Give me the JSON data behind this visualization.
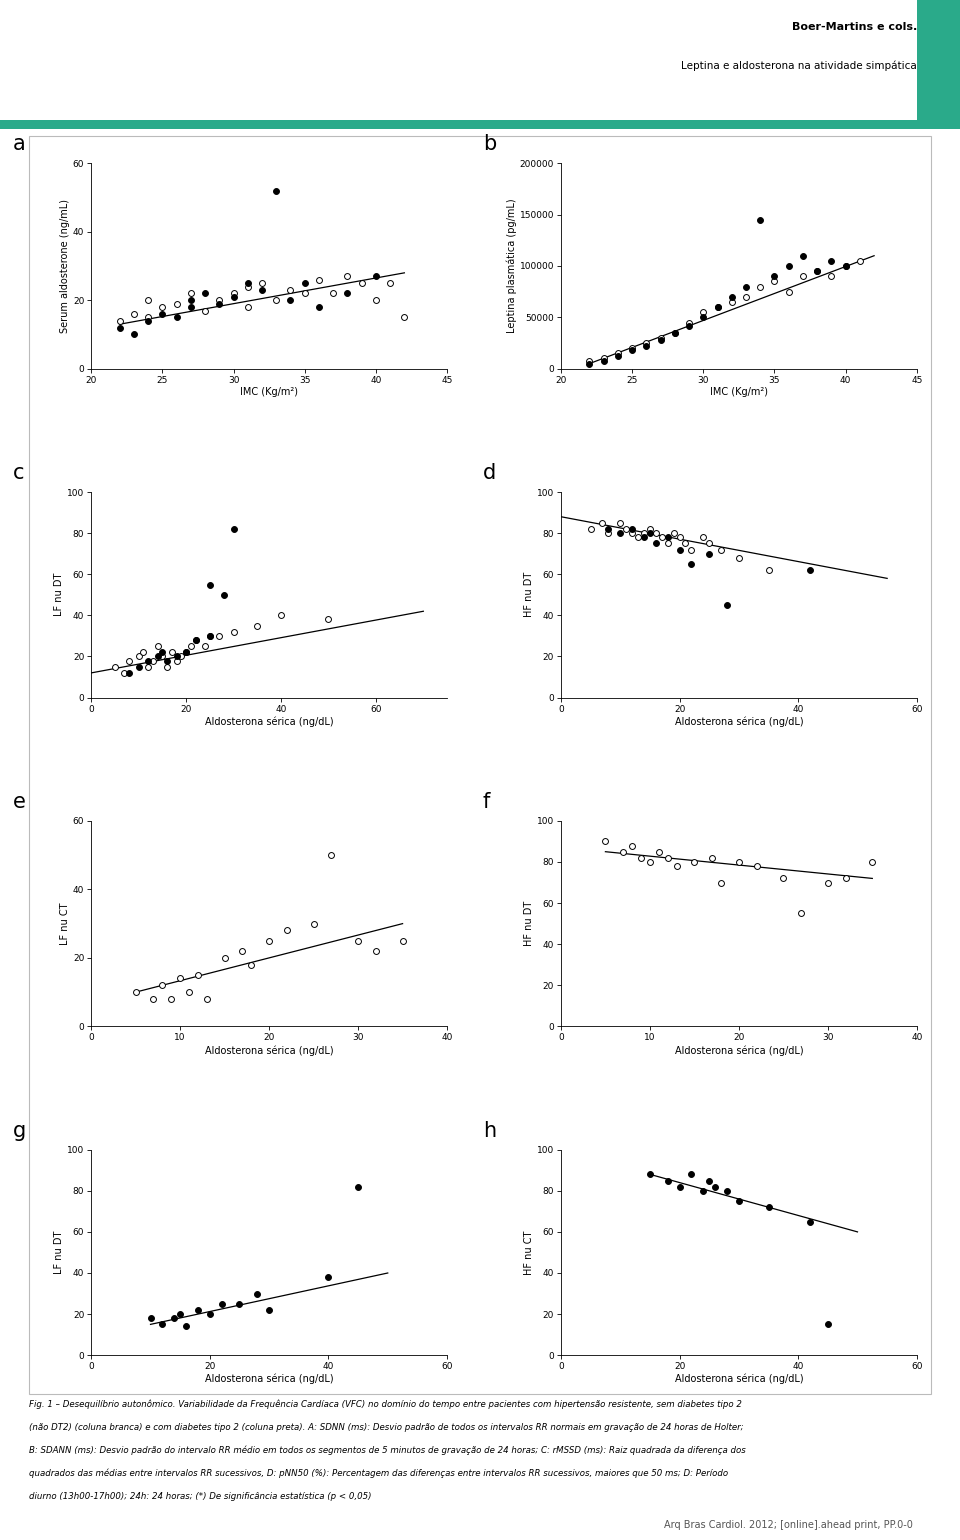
{
  "header_title": "Boer-Martins e cols.",
  "header_subtitle": "Leptina e aldosterona na atividade simpática",
  "teal_color": "#2aaa8a",
  "footer_lines": [
    "Fig. 1 – Desequilíbrio autonômico. Variabilidade da Frequência Cardíaca (VFC) no domínio do tempo entre pacientes com hipertensão resistente, sem diabetes tipo 2",
    "(não DT2) (coluna branca) e com diabetes tipo 2 (coluna preta). A: SDNN (ms): Desvio padrão de todos os intervalos RR normais em gravação de 24 horas de Holter;",
    "B: SDANN (ms): Desvio padrão do intervalo RR médio em todos os segmentos de 5 minutos de gravação de 24 horas; C: rMSSD (ms): Raiz quadrada da diferença dos",
    "quadrados das médias entre intervalos RR sucessivos, D: pNN50 (%): Percentagem das diferenças entre intervalos RR sucessivos, maiores que 50 ms; D: Período",
    "diurno (13h00-17h00); 24h: 24 horas; (*) De significância estatística (p < 0,05)"
  ],
  "footer_journal": "Arq Bras Cardiol. 2012; [online].ahead print, PP.0-0",
  "plots": [
    {
      "label": "a",
      "xlabel": "IMC (Kg/m²)",
      "ylabel": "Serum aldosterone (ng/mL)",
      "xlim": [
        20,
        45
      ],
      "ylim": [
        0,
        60
      ],
      "xticks": [
        20,
        25,
        30,
        35,
        40,
        45
      ],
      "yticks": [
        0,
        20,
        40,
        60
      ],
      "white_x": [
        22,
        23,
        24,
        24,
        25,
        26,
        27,
        28,
        29,
        30,
        31,
        31,
        32,
        33,
        34,
        35,
        36,
        37,
        38,
        39,
        40,
        41,
        42
      ],
      "white_y": [
        14,
        16,
        20,
        15,
        18,
        19,
        22,
        17,
        20,
        22,
        18,
        24,
        25,
        20,
        23,
        22,
        26,
        22,
        27,
        25,
        20,
        25,
        15
      ],
      "black_x": [
        22,
        23,
        24,
        25,
        26,
        27,
        27,
        28,
        29,
        30,
        31,
        32,
        33,
        34,
        35,
        36,
        38,
        40
      ],
      "black_y": [
        12,
        10,
        14,
        16,
        15,
        18,
        20,
        22,
        19,
        21,
        25,
        23,
        52,
        20,
        25,
        18,
        22,
        27
      ],
      "trend_x": [
        22,
        42
      ],
      "trend_y": [
        13,
        28
      ]
    },
    {
      "label": "b",
      "xlabel": "IMC (Kg/m²)",
      "ylabel": "Leptina plasmática (pg/mL)",
      "xlim": [
        20,
        45
      ],
      "ylim": [
        0,
        200000
      ],
      "xticks": [
        20,
        25,
        30,
        35,
        40,
        45
      ],
      "yticks": [
        0,
        50000,
        100000,
        150000,
        200000
      ],
      "ytick_labels": [
        "0",
        "50000",
        "100000",
        "150000",
        "200000"
      ],
      "white_x": [
        22,
        23,
        24,
        25,
        26,
        27,
        28,
        29,
        30,
        31,
        32,
        33,
        34,
        35,
        36,
        37,
        38,
        39,
        40,
        41
      ],
      "white_y": [
        8000,
        10000,
        15000,
        20000,
        25000,
        30000,
        35000,
        45000,
        55000,
        60000,
        65000,
        70000,
        80000,
        85000,
        75000,
        90000,
        95000,
        90000,
        100000,
        105000
      ],
      "black_x": [
        22,
        23,
        24,
        25,
        26,
        27,
        28,
        29,
        30,
        31,
        32,
        33,
        34,
        35,
        36,
        37,
        38,
        39,
        40
      ],
      "black_y": [
        5000,
        8000,
        12000,
        18000,
        22000,
        28000,
        35000,
        42000,
        50000,
        60000,
        70000,
        80000,
        145000,
        90000,
        100000,
        110000,
        95000,
        105000,
        100000
      ],
      "trend_x": [
        22,
        42
      ],
      "trend_y": [
        5000,
        110000
      ]
    },
    {
      "label": "c",
      "xlabel": "Aldosterona sérica (ng/dL)",
      "ylabel": "LF nu DT",
      "xlim": [
        0,
        75
      ],
      "ylim": [
        0,
        100
      ],
      "xticks": [
        0,
        20,
        40,
        60
      ],
      "yticks": [
        0,
        20,
        40,
        60,
        80,
        100
      ],
      "white_x": [
        5,
        7,
        8,
        10,
        11,
        12,
        13,
        14,
        15,
        16,
        17,
        18,
        19,
        20,
        21,
        22,
        24,
        25,
        27,
        30,
        35,
        40,
        50
      ],
      "white_y": [
        15,
        12,
        18,
        20,
        22,
        15,
        18,
        25,
        20,
        15,
        22,
        18,
        20,
        22,
        25,
        28,
        25,
        30,
        30,
        32,
        35,
        40,
        38
      ],
      "black_x": [
        8,
        10,
        12,
        14,
        15,
        16,
        18,
        20,
        22,
        25,
        28,
        30,
        25
      ],
      "black_y": [
        12,
        15,
        18,
        20,
        22,
        18,
        20,
        22,
        28,
        30,
        50,
        82,
        55
      ],
      "trend_x": [
        0,
        70
      ],
      "trend_y": [
        12,
        42
      ]
    },
    {
      "label": "d",
      "xlabel": "Aldosterona sérica (ng/dL)",
      "ylabel": "HF nu DT",
      "xlim": [
        0,
        55
      ],
      "ylim": [
        0,
        100
      ],
      "xticks": [
        0,
        20,
        40,
        60
      ],
      "yticks": [
        0,
        20,
        40,
        60,
        80,
        100
      ],
      "white_x": [
        5,
        7,
        8,
        10,
        11,
        12,
        13,
        14,
        15,
        16,
        17,
        18,
        19,
        20,
        21,
        22,
        24,
        25,
        27,
        30,
        35
      ],
      "white_y": [
        82,
        85,
        80,
        85,
        82,
        80,
        78,
        80,
        82,
        80,
        78,
        75,
        80,
        78,
        75,
        72,
        78,
        75,
        72,
        68,
        62
      ],
      "black_x": [
        8,
        10,
        12,
        14,
        15,
        16,
        18,
        20,
        22,
        25,
        28,
        42
      ],
      "black_y": [
        82,
        80,
        82,
        78,
        80,
        75,
        78,
        72,
        65,
        70,
        45,
        62
      ],
      "trend_x": [
        0,
        55
      ],
      "trend_y": [
        88,
        58
      ]
    },
    {
      "label": "e",
      "xlabel": "Aldosterona sérica (ng/dL)",
      "ylabel": "LF nu CT",
      "xlim": [
        0,
        40
      ],
      "ylim": [
        0,
        60
      ],
      "xticks": [
        0,
        10,
        20,
        30,
        40
      ],
      "yticks": [
        0,
        20,
        40,
        60
      ],
      "white_x": [
        5,
        7,
        8,
        9,
        10,
        11,
        12,
        13,
        15,
        17,
        18,
        20,
        22,
        25,
        27,
        30,
        32,
        35
      ],
      "white_y": [
        10,
        8,
        12,
        8,
        14,
        10,
        15,
        8,
        20,
        22,
        18,
        25,
        28,
        30,
        50,
        25,
        22,
        25
      ],
      "black_x": [],
      "black_y": [],
      "trend_x": [
        5,
        35
      ],
      "trend_y": [
        10,
        30
      ]
    },
    {
      "label": "f",
      "xlabel": "Aldosterona sérica (ng/dL)",
      "ylabel": "HF nu DT",
      "xlim": [
        0,
        40
      ],
      "ylim": [
        0,
        100
      ],
      "xticks": [
        0,
        10,
        20,
        30,
        40
      ],
      "yticks": [
        0,
        20,
        40,
        60,
        80,
        100
      ],
      "white_x": [
        5,
        7,
        8,
        9,
        10,
        11,
        12,
        13,
        15,
        17,
        18,
        20,
        22,
        25,
        27,
        30,
        32,
        35
      ],
      "white_y": [
        90,
        85,
        88,
        82,
        80,
        85,
        82,
        78,
        80,
        82,
        70,
        80,
        78,
        72,
        55,
        70,
        72,
        80
      ],
      "black_x": [],
      "black_y": [],
      "trend_x": [
        5,
        35
      ],
      "trend_y": [
        85,
        72
      ]
    },
    {
      "label": "g",
      "xlabel": "Aldosterona sérica (ng/dL)",
      "ylabel": "LF nu DT",
      "xlim": [
        0,
        55
      ],
      "ylim": [
        0,
        100
      ],
      "xticks": [
        0,
        20,
        40,
        60
      ],
      "yticks": [
        0,
        20,
        40,
        60,
        80,
        100
      ],
      "white_x": [],
      "white_y": [],
      "black_x": [
        10,
        12,
        14,
        15,
        16,
        18,
        20,
        22,
        25,
        28,
        30,
        40,
        45
      ],
      "black_y": [
        18,
        15,
        18,
        20,
        14,
        22,
        20,
        25,
        25,
        30,
        22,
        38,
        82
      ],
      "trend_x": [
        10,
        50
      ],
      "trend_y": [
        15,
        40
      ]
    },
    {
      "label": "h",
      "xlabel": "Aldosterona sérica (ng/dL)",
      "ylabel": "HF nu CT",
      "xlim": [
        0,
        55
      ],
      "ylim": [
        0,
        100
      ],
      "xticks": [
        0,
        20,
        40,
        60
      ],
      "yticks": [
        0,
        20,
        40,
        60,
        80,
        100
      ],
      "white_x": [],
      "white_y": [],
      "black_x": [
        15,
        18,
        20,
        22,
        24,
        25,
        26,
        28,
        30,
        35,
        42,
        45
      ],
      "black_y": [
        88,
        85,
        82,
        88,
        80,
        85,
        82,
        80,
        75,
        72,
        65,
        15
      ],
      "trend_x": [
        15,
        50
      ],
      "trend_y": [
        88,
        60
      ]
    }
  ]
}
